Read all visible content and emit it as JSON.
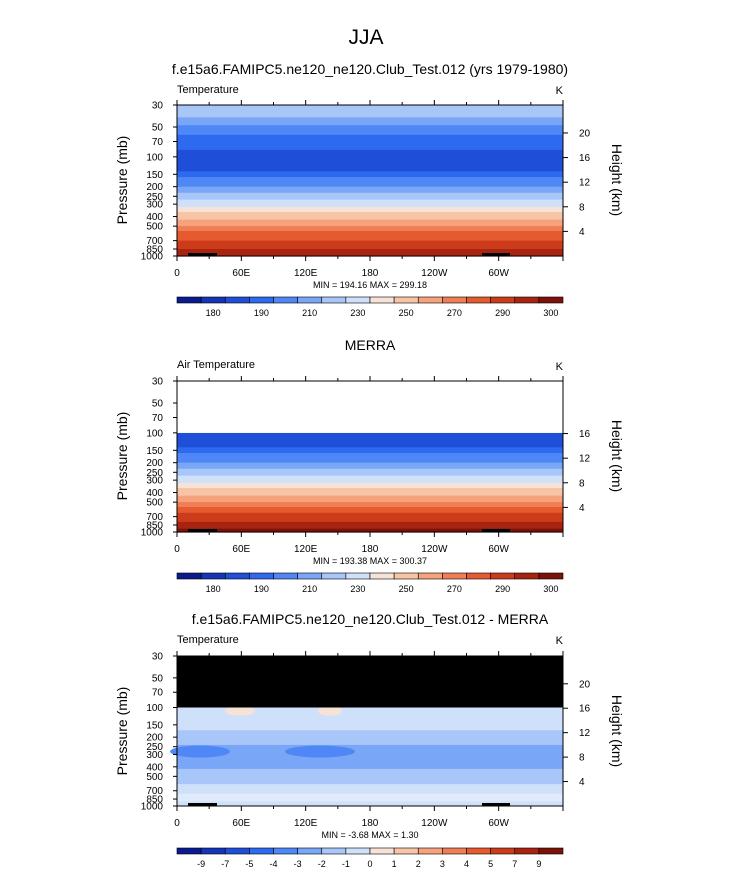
{
  "figure": {
    "title": "JJA"
  },
  "chart_data": [
    {
      "type": "heatmap",
      "title": "f.e15a6.FAMIPC5.ne120_ne120.Club_Test.012 (yrs 1979-1980)",
      "left_label": "Temperature",
      "units": "K",
      "ylabel": "Pressure (mb)",
      "ylabel_right": "Height (km)",
      "pressure_ticks": [
        "30",
        "50",
        "70",
        "100",
        "150",
        "200",
        "250",
        "300",
        "400",
        "500",
        "700",
        "850",
        "1000"
      ],
      "height_ticks": [
        "4",
        "8",
        "12",
        "16",
        "20"
      ],
      "lon_ticks": [
        "0",
        "60E",
        "120E",
        "180",
        "120W",
        "60W"
      ],
      "min_max": "MIN = 194.16  MAX = 299.18",
      "colorbar_labels": [
        "180",
        "190",
        "210",
        "230",
        "250",
        "270",
        "290",
        "300"
      ],
      "masked_top_hpa": null,
      "colors": [
        "#0a1b8e",
        "#1534b6",
        "#1f4fd8",
        "#2e6af0",
        "#4f88f6",
        "#7aa6f7",
        "#a8c6f8",
        "#cfe0fa",
        "#f7e2d6",
        "#f8c4a6",
        "#f5a27d",
        "#f07d53",
        "#e55a2e",
        "#cc3c1a",
        "#a82410",
        "#7e1208"
      ],
      "band_hpa": [
        30,
        40,
        48,
        60,
        85,
        105,
        140,
        160,
        200,
        230,
        270,
        320,
        360,
        430,
        500,
        560,
        640,
        700,
        790,
        850,
        925
      ]
    },
    {
      "type": "heatmap",
      "title": "MERRA",
      "left_label": "Air Temperature",
      "units": "K",
      "ylabel": "Pressure (mb)",
      "ylabel_right": "Height (km)",
      "pressure_ticks": [
        "30",
        "50",
        "70",
        "100",
        "150",
        "200",
        "250",
        "300",
        "400",
        "500",
        "700",
        "850",
        "1000"
      ],
      "height_ticks": [
        "4",
        "8",
        "12",
        "16"
      ],
      "lon_ticks": [
        "0",
        "60E",
        "120E",
        "180",
        "120W",
        "60W"
      ],
      "min_max": "MIN = 193.38  MAX = 300.37",
      "colorbar_labels": [
        "180",
        "190",
        "210",
        "230",
        "250",
        "270",
        "290",
        "300"
      ],
      "masked_top_hpa": 100,
      "colors": [
        "#0a1b8e",
        "#1534b6",
        "#1f4fd8",
        "#2e6af0",
        "#4f88f6",
        "#7aa6f7",
        "#a8c6f8",
        "#cfe0fa",
        "#f7e2d6",
        "#f8c4a6",
        "#f5a27d",
        "#f07d53",
        "#e55a2e",
        "#cc3c1a",
        "#a82410",
        "#7e1208"
      ],
      "band_hpa": [
        100,
        140,
        160,
        200,
        230,
        270,
        320,
        360,
        430,
        500,
        560,
        640,
        700,
        790,
        850,
        925
      ]
    },
    {
      "type": "heatmap",
      "title": "f.e15a6.FAMIPC5.ne120_ne120.Club_Test.012 - MERRA",
      "left_label": "Temperature",
      "units": "K",
      "ylabel": "Pressure (mb)",
      "ylabel_right": "Height (km)",
      "pressure_ticks": [
        "30",
        "50",
        "70",
        "100",
        "150",
        "200",
        "250",
        "300",
        "400",
        "500",
        "700",
        "850",
        "1000"
      ],
      "height_ticks": [
        "4",
        "8",
        "12",
        "16",
        "20"
      ],
      "lon_ticks": [
        "0",
        "60E",
        "120E",
        "180",
        "120W",
        "60W"
      ],
      "min_max": "MIN = -3.68  MAX =  1.30",
      "colorbar_labels": [
        "-9",
        "-7",
        "-5",
        "-4",
        "-3",
        "-2",
        "-1",
        "0",
        "1",
        "2",
        "3",
        "4",
        "5",
        "7",
        "9"
      ],
      "masked_top_hpa": 100,
      "colors": [
        "#0a1b8e",
        "#1534b6",
        "#1f4fd8",
        "#2e6af0",
        "#4f88f6",
        "#7aa6f7",
        "#a8c6f8",
        "#cfe0fa",
        "#f7e2d6",
        "#f8c4a6",
        "#f5a27d",
        "#f07d53",
        "#e55a2e",
        "#cc3c1a",
        "#a82410",
        "#7e1208"
      ]
    }
  ]
}
